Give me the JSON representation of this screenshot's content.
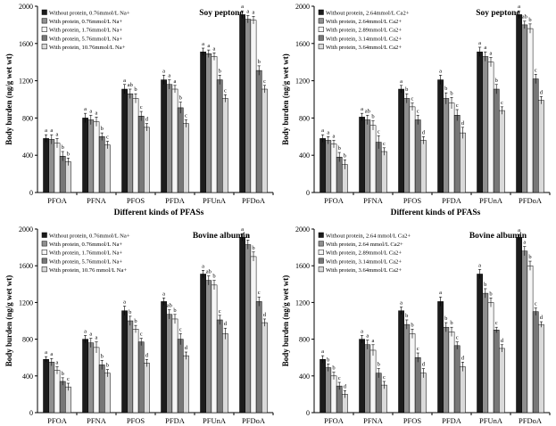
{
  "chart_data": [
    {
      "type": "bar",
      "title": "Soy peptone",
      "xlabel": "Different kinds of PFASs",
      "ylabel": "Body burden (ng/g wet wt)",
      "ylim": [
        0,
        2000
      ],
      "yticks": [
        "0",
        "400",
        "800",
        "1200",
        "1600",
        "2000"
      ],
      "legend": "top-left",
      "categories": [
        "PFOA",
        "PFNA",
        "PFOS",
        "PFDA",
        "PFUnA",
        "PFDoA"
      ],
      "series": [
        {
          "name": "Without protein, 0.76mmol/L Na+",
          "color": "#1c1c1c",
          "values": [
            580,
            800,
            1110,
            1210,
            1510,
            1910
          ],
          "errors": [
            40,
            50,
            50,
            50,
            40,
            40
          ],
          "letters": [
            "a",
            "a",
            "a",
            "a",
            "a",
            "a"
          ]
        },
        {
          "name": "With protein, 0.76mmol/L Na+",
          "color": "#8f8f8f",
          "values": [
            570,
            780,
            1060,
            1160,
            1490,
            1860
          ],
          "errors": [
            50,
            50,
            50,
            50,
            40,
            40
          ],
          "letters": [
            "a",
            "a",
            "ab",
            "a",
            "a",
            "a"
          ]
        },
        {
          "name": "With protein, 1.76mmol/L Na+",
          "color": "#f6f6f6",
          "values": [
            530,
            760,
            1010,
            1110,
            1460,
            1850
          ],
          "errors": [
            50,
            50,
            50,
            40,
            40,
            40
          ],
          "letters": [
            "a",
            "a",
            "b",
            "a",
            "a",
            "a"
          ]
        },
        {
          "name": "With protein, 5.76mmol/L Na+",
          "color": "#777777",
          "values": [
            390,
            600,
            820,
            910,
            1210,
            1310
          ],
          "errors": [
            50,
            40,
            50,
            60,
            50,
            50
          ],
          "letters": [
            "b",
            "b",
            "c",
            "b",
            "b",
            "b"
          ]
        },
        {
          "name": "With protein, 10.76mmol/L Na+",
          "color": "#dadada",
          "values": [
            330,
            510,
            700,
            740,
            1010,
            1110
          ],
          "errors": [
            40,
            40,
            40,
            40,
            40,
            40
          ],
          "letters": [
            "b",
            "c",
            "d",
            "c",
            "c",
            "c"
          ]
        }
      ]
    },
    {
      "type": "bar",
      "title": "Soy peptone",
      "xlabel": "Different kinds of PFASs",
      "ylabel": "Body burden (ng/g wet wt)",
      "ylim": [
        0,
        2000
      ],
      "yticks": [
        "0",
        "400",
        "800",
        "1200",
        "1600",
        "2000"
      ],
      "legend": "top-left",
      "categories": [
        "PFOA",
        "PFNA",
        "PFOS",
        "PFDA",
        "PFUnA",
        "PFDoA"
      ],
      "series": [
        {
          "name": "Without protein, 2.64mmol/L Ca2+",
          "color": "#1c1c1c",
          "values": [
            580,
            810,
            1110,
            1210,
            1510,
            1910
          ],
          "errors": [
            40,
            40,
            40,
            50,
            50,
            40
          ],
          "letters": [
            "a",
            "a",
            "a",
            "a",
            "a",
            "a"
          ]
        },
        {
          "name": "With protein, 2.64mmol/L Ca2+",
          "color": "#8f8f8f",
          "values": [
            560,
            780,
            1010,
            1010,
            1460,
            1800
          ],
          "errors": [
            40,
            50,
            50,
            60,
            50,
            40
          ],
          "letters": [
            "a",
            "ab",
            "b",
            "b",
            "a",
            "ab"
          ]
        },
        {
          "name": "With protein, 2.89mmol/L Ca2+",
          "color": "#f6f6f6",
          "values": [
            520,
            720,
            920,
            960,
            1400,
            1760
          ],
          "errors": [
            40,
            50,
            40,
            60,
            50,
            50
          ],
          "letters": [
            "a",
            "b",
            "c",
            "b",
            "a",
            "b"
          ]
        },
        {
          "name": "With protein, 3.14mmol/L Ca2+",
          "color": "#777777",
          "values": [
            380,
            540,
            780,
            830,
            1110,
            1220
          ],
          "errors": [
            50,
            70,
            50,
            60,
            50,
            50
          ],
          "letters": [
            "b",
            "c",
            "c",
            "c",
            "b",
            "c"
          ]
        },
        {
          "name": "With protein, 3.64mmol/L Ca2+",
          "color": "#dadada",
          "values": [
            300,
            440,
            560,
            640,
            880,
            990
          ],
          "errors": [
            50,
            40,
            40,
            60,
            40,
            40
          ],
          "letters": [
            "b",
            "c",
            "d",
            "d",
            "c",
            "d"
          ]
        }
      ]
    },
    {
      "type": "bar",
      "title": "Bovine albumin",
      "xlabel": "Different kinds of PFASs",
      "ylabel": "Body burden (ng/g wet wt)",
      "ylim": [
        0,
        2000
      ],
      "yticks": [
        "0",
        "400",
        "800",
        "1200",
        "1600",
        "2000"
      ],
      "legend": "top-left",
      "categories": [
        "PFOA",
        "PFNA",
        "PFOS",
        "PFDA",
        "PFUnA",
        "PFDoA"
      ],
      "series": [
        {
          "name": "Without protein, 0.76mmol/L Na+",
          "color": "#1c1c1c",
          "values": [
            580,
            800,
            1110,
            1210,
            1510,
            1910
          ],
          "errors": [
            30,
            40,
            50,
            40,
            40,
            40
          ],
          "letters": [
            "a",
            "a",
            "a",
            "a",
            "a",
            "a"
          ]
        },
        {
          "name": "With protein, 0.76mmol/L Na+",
          "color": "#8f8f8f",
          "values": [
            550,
            760,
            1000,
            1070,
            1440,
            1830
          ],
          "errors": [
            40,
            50,
            50,
            50,
            50,
            50
          ],
          "letters": [
            "a",
            "a",
            "b",
            "ab",
            "ab",
            "a"
          ]
        },
        {
          "name": "With protein, 1.76mmol/L Na+",
          "color": "#f6f6f6",
          "values": [
            460,
            710,
            910,
            1020,
            1390,
            1700
          ],
          "errors": [
            40,
            60,
            40,
            50,
            50,
            50
          ],
          "letters": [
            "a",
            "a",
            "b",
            "b",
            "b",
            "b"
          ]
        },
        {
          "name": "With protein, 5.76mmol/L Na+",
          "color": "#777777",
          "values": [
            340,
            520,
            770,
            800,
            1010,
            1210
          ],
          "errors": [
            40,
            50,
            40,
            60,
            50,
            50
          ],
          "letters": [
            "b",
            "b",
            "c",
            "c",
            "c",
            "c"
          ]
        },
        {
          "name": "With protein, 10.76 mmol/L Na+",
          "color": "#dadada",
          "values": [
            280,
            430,
            540,
            620,
            860,
            980
          ],
          "errors": [
            40,
            40,
            40,
            40,
            60,
            40
          ],
          "letters": [
            "c",
            "b",
            "d",
            "d",
            "d",
            "d"
          ]
        }
      ]
    },
    {
      "type": "bar",
      "title": "Bovine albumin",
      "xlabel": "Different kinds of PFASs",
      "ylabel": "Body burden (ng/g wet wt)",
      "ylim": [
        0,
        2000
      ],
      "yticks": [
        "0",
        "400",
        "800",
        "1200",
        "1600",
        "2000"
      ],
      "legend": "top-left",
      "categories": [
        "PFOA",
        "PFNA",
        "PFOS",
        "PFDA",
        "PFUnA",
        "PFDoA"
      ],
      "series": [
        {
          "name": "Without protein, 2.64 mmol/L Ca2+",
          "color": "#1c1c1c",
          "values": [
            580,
            800,
            1110,
            1210,
            1510,
            1910
          ],
          "errors": [
            40,
            40,
            40,
            50,
            50,
            30
          ],
          "letters": [
            "a",
            "a",
            "a",
            "a",
            "a",
            "a"
          ]
        },
        {
          "name": "With protein, 2.64 mmol/L Ca2+",
          "color": "#8f8f8f",
          "values": [
            490,
            740,
            960,
            930,
            1300,
            1760
          ],
          "errors": [
            40,
            50,
            50,
            50,
            50,
            50
          ],
          "letters": [
            "b",
            "a",
            "b",
            "b",
            "b",
            "a"
          ]
        },
        {
          "name": "With protein, 2.89mmol/L Ca2+",
          "color": "#f6f6f6",
          "values": [
            400,
            680,
            860,
            880,
            1200,
            1600
          ],
          "errors": [
            40,
            60,
            50,
            50,
            50,
            50
          ],
          "letters": [
            "b",
            "a",
            "b",
            "b",
            "b",
            "b"
          ]
        },
        {
          "name": "With protein, 3.14mmol/L Ca2+",
          "color": "#777777",
          "values": [
            290,
            430,
            600,
            730,
            900,
            1100
          ],
          "errors": [
            40,
            50,
            50,
            40,
            30,
            40
          ],
          "letters": [
            "c",
            "b",
            "c",
            "c",
            "c",
            "c"
          ]
        },
        {
          "name": "With protein, 3.64mmol/L Ca2+",
          "color": "#dadada",
          "values": [
            200,
            300,
            430,
            500,
            700,
            960
          ],
          "errors": [
            40,
            40,
            50,
            50,
            40,
            30
          ],
          "letters": [
            "d",
            "c",
            "d",
            "d",
            "d",
            "d"
          ]
        }
      ]
    }
  ]
}
